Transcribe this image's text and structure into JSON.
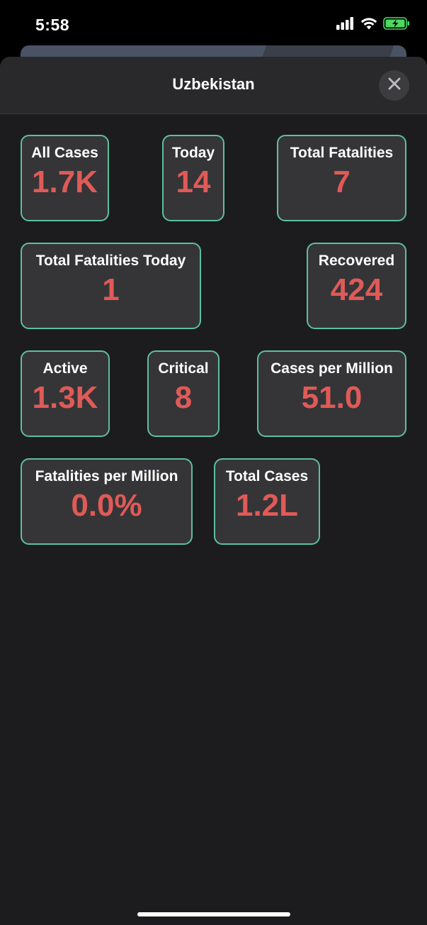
{
  "status_bar": {
    "time": "5:58",
    "icons": [
      "cellular-signal-icon",
      "wifi-icon",
      "battery-charging-icon"
    ],
    "battery_color": "#4cd964"
  },
  "header": {
    "title": "Uzbekistan",
    "close_icon": "close-icon"
  },
  "stats": [
    {
      "label": "All Cases",
      "value": "1.7K"
    },
    {
      "label": "Today",
      "value": "14"
    },
    {
      "label": "Total Fatalities",
      "value": "7"
    },
    {
      "label": "Total Fatalities Today",
      "value": "1"
    },
    {
      "label": "Recovered",
      "value": "424"
    },
    {
      "label": "Active",
      "value": "1.3K"
    },
    {
      "label": "Critical",
      "value": "8"
    },
    {
      "label": "Cases per Million",
      "value": "51.0"
    },
    {
      "label": "Fatalities per Million",
      "value": "0.0%"
    },
    {
      "label": "Total Cases",
      "value": "1.2L"
    }
  ],
  "colors": {
    "card_border": "#5fbf9c",
    "value_text": "#e05a57",
    "card_background": "#353537",
    "sheet_background": "#1c1c1e"
  }
}
